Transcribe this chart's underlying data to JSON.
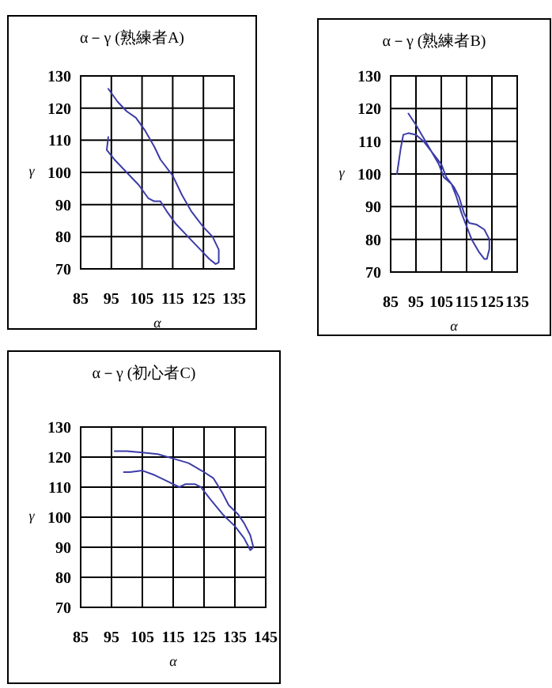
{
  "chart_data": [
    {
      "type": "line",
      "title": "α－γ (熟練者A)",
      "xlabel": "α",
      "ylabel": "γ",
      "xlim": [
        85,
        135
      ],
      "ylim": [
        70,
        130
      ],
      "xticks": [
        85,
        95,
        105,
        115,
        125,
        135
      ],
      "yticks": [
        70,
        80,
        90,
        100,
        110,
        120,
        130
      ],
      "grid": true,
      "series": [
        {
          "color": "#3c3ca8",
          "x": [
            94,
            93.5,
            96,
            100,
            104,
            107,
            109,
            111,
            113,
            116,
            120,
            124,
            127,
            129,
            130,
            130,
            128,
            125,
            121,
            118,
            115,
            111,
            109,
            106,
            103,
            100,
            97,
            94
          ],
          "values": [
            111,
            107,
            104,
            100,
            96,
            92,
            91,
            91,
            88,
            84,
            80,
            76,
            73,
            71.5,
            72,
            76,
            80,
            83,
            88,
            93,
            99,
            104,
            108,
            113,
            117,
            119,
            122,
            126
          ]
        }
      ]
    },
    {
      "type": "line",
      "title": "α－γ (熟練者B)",
      "xlabel": "α",
      "ylabel": "γ",
      "xlim": [
        85,
        135
      ],
      "ylim": [
        70,
        130
      ],
      "xticks": [
        85,
        95,
        105,
        115,
        125,
        135
      ],
      "yticks": [
        70,
        80,
        90,
        100,
        110,
        120,
        130
      ],
      "grid": true,
      "series": [
        {
          "color": "#3c3ca8",
          "x": [
            87.5,
            89,
            90,
            92,
            95,
            98,
            101,
            104,
            106,
            109,
            111,
            113,
            115,
            117,
            120,
            122,
            123,
            124,
            124,
            122,
            119,
            116,
            114,
            112,
            110,
            107,
            105,
            101,
            98,
            95,
            92
          ],
          "values": [
            100,
            108,
            112,
            112.5,
            112,
            110,
            107,
            103,
            99,
            97,
            93,
            88,
            84,
            80,
            76,
            74,
            74,
            77,
            80,
            83,
            84.5,
            85,
            88,
            93,
            96,
            99,
            103,
            107,
            111,
            115,
            118.5
          ]
        }
      ]
    },
    {
      "type": "line",
      "title": "α－γ (初心者C)",
      "xlabel": "α",
      "ylabel": "γ",
      "xlim": [
        85,
        145
      ],
      "ylim": [
        70,
        130
      ],
      "xticks": [
        85,
        95,
        105,
        115,
        125,
        135,
        145
      ],
      "yticks": [
        70,
        80,
        90,
        100,
        110,
        120,
        130
      ],
      "grid": true,
      "series": [
        {
          "color": "#3c3ca8",
          "x": [
            96,
            100,
            105,
            110,
            115,
            120,
            125,
            128,
            131,
            133,
            136,
            138,
            140,
            141,
            140,
            138,
            135,
            131,
            127,
            124,
            122,
            119,
            117,
            113,
            109,
            105,
            101,
            99
          ],
          "values": [
            122,
            122,
            121.5,
            121,
            119.5,
            118,
            115,
            113,
            108,
            104,
            101,
            98,
            94,
            90,
            89,
            93,
            97,
            101,
            106,
            110,
            111,
            111,
            110,
            112,
            114,
            115.5,
            115,
            115
          ]
        }
      ]
    }
  ]
}
